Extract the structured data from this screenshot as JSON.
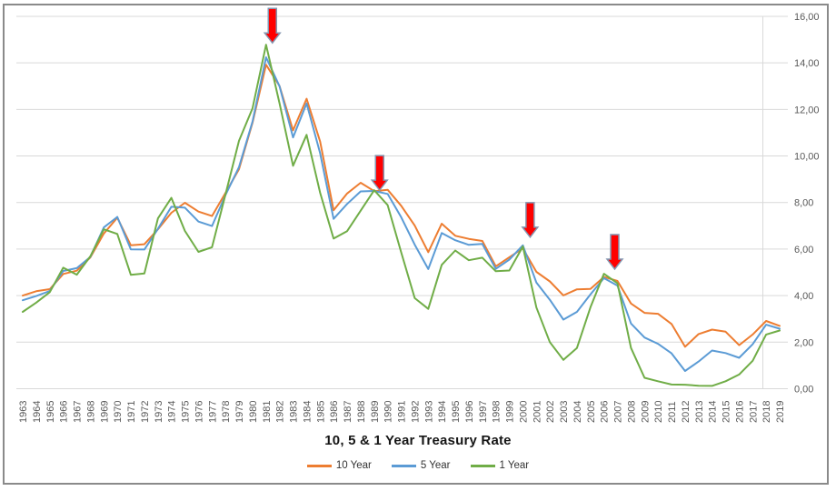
{
  "chart_data": {
    "type": "line",
    "title": "10, 5 & 1 Year Treasury Rate",
    "x": [
      1963,
      1964,
      1965,
      1966,
      1967,
      1968,
      1969,
      1970,
      1971,
      1972,
      1973,
      1974,
      1975,
      1976,
      1977,
      1978,
      1979,
      1980,
      1981,
      1982,
      1983,
      1984,
      1985,
      1986,
      1987,
      1988,
      1989,
      1990,
      1991,
      1992,
      1993,
      1994,
      1995,
      1996,
      1997,
      1998,
      1999,
      2000,
      2001,
      2002,
      2003,
      2004,
      2005,
      2006,
      2007,
      2008,
      2009,
      2010,
      2011,
      2012,
      2013,
      2014,
      2015,
      2016,
      2017,
      2018,
      2019
    ],
    "series": [
      {
        "name": "10 Year",
        "color": "#ED7D31",
        "values": [
          4.0,
          4.19,
          4.28,
          4.93,
          5.07,
          5.64,
          6.67,
          7.35,
          6.16,
          6.21,
          6.85,
          7.56,
          7.99,
          7.61,
          7.42,
          8.41,
          9.43,
          11.43,
          13.92,
          13.01,
          11.1,
          12.46,
          10.62,
          7.67,
          8.39,
          8.85,
          8.49,
          8.55,
          7.86,
          7.01,
          5.87,
          7.09,
          6.57,
          6.44,
          6.35,
          5.26,
          5.65,
          6.03,
          5.02,
          4.61,
          4.01,
          4.27,
          4.29,
          4.8,
          4.63,
          3.66,
          3.26,
          3.22,
          2.78,
          1.8,
          2.35,
          2.54,
          2.45,
          1.87,
          2.33,
          2.91,
          2.7
        ]
      },
      {
        "name": "5 Year",
        "color": "#5B9BD5",
        "values": [
          3.8,
          3.98,
          4.2,
          5.06,
          5.18,
          5.66,
          6.93,
          7.38,
          5.99,
          5.98,
          6.87,
          7.82,
          7.78,
          7.18,
          6.99,
          8.32,
          9.52,
          11.48,
          14.24,
          13.0,
          10.8,
          12.26,
          10.12,
          7.3,
          7.94,
          8.48,
          8.5,
          8.37,
          7.37,
          6.19,
          5.14,
          6.69,
          6.38,
          6.18,
          6.22,
          5.15,
          5.55,
          6.16,
          4.56,
          3.82,
          2.97,
          3.3,
          4.05,
          4.75,
          4.43,
          2.8,
          2.2,
          1.93,
          1.52,
          0.76,
          1.17,
          1.64,
          1.53,
          1.33,
          1.91,
          2.75,
          2.58
        ]
      },
      {
        "name": "1 Year",
        "color": "#70AD47",
        "values": [
          3.3,
          3.7,
          4.15,
          5.2,
          4.9,
          5.69,
          6.85,
          6.65,
          4.89,
          4.95,
          7.32,
          8.2,
          6.78,
          5.88,
          6.08,
          8.34,
          10.65,
          12.05,
          14.78,
          12.27,
          9.58,
          10.91,
          8.42,
          6.45,
          6.77,
          7.65,
          8.53,
          7.89,
          5.86,
          3.89,
          3.43,
          5.32,
          5.94,
          5.52,
          5.63,
          5.05,
          5.08,
          6.11,
          3.49,
          2.0,
          1.24,
          1.75,
          3.5,
          4.94,
          4.53,
          1.75,
          0.47,
          0.32,
          0.18,
          0.17,
          0.13,
          0.12,
          0.32,
          0.61,
          1.2,
          2.33,
          2.5
        ]
      }
    ],
    "ylim": [
      0,
      16
    ],
    "ytick_step": 2,
    "ytick_labels": [
      "0,00",
      "2,00",
      "4,00",
      "6,00",
      "8,00",
      "10,00",
      "12,00",
      "14,00",
      "16,00"
    ],
    "yaxis_side": "right",
    "grid": true,
    "legend_position": "bottom-center",
    "annotations": {
      "type": "arrow-down",
      "color": "#FF0000",
      "border_color": "#8496B0",
      "years": [
        1981,
        1989,
        2000,
        2007
      ]
    }
  }
}
